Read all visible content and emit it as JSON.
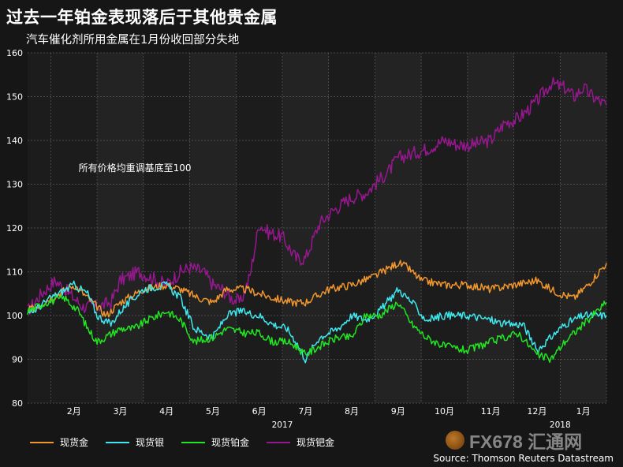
{
  "header": {
    "title": "过去一年铂金表现落后于其他贵金属",
    "subtitle": "汽车催化剂所用金属在1月份收回部分失地"
  },
  "source": "Source: Thomson Reuters Datastream",
  "watermark": "FX678 汇通网",
  "colors": {
    "background": "#161616",
    "plot_bg": "#1c1c1c",
    "shade_bg": "#232323",
    "grid": "#5a5a5a",
    "gold": "#f0962e",
    "silver": "#3ee8ee",
    "platinum": "#22e422",
    "palladium": "#96188f"
  },
  "chart_data": {
    "type": "line",
    "title": "过去一年铂金表现落后于其他贵金属",
    "subtitle": "汽车催化剂所用金属在1月份收回部分失地",
    "annotation": "所有价格均重调基底至100",
    "ylim": [
      80,
      160
    ],
    "yticks": [
      80,
      90,
      100,
      110,
      120,
      130,
      140,
      150,
      160
    ],
    "xlim": [
      0,
      12.5
    ],
    "x_month_labels": [
      "2月",
      "3月",
      "4月",
      "5月",
      "6月",
      "7月",
      "8月",
      "9月",
      "10月",
      "11月",
      "12月",
      "1月"
    ],
    "year_labels": [
      {
        "label": "2017",
        "x": 5.5
      },
      {
        "label": "2018",
        "x": 11.5
      }
    ],
    "grid": true,
    "legend_position": "bottom-left",
    "series": [
      {
        "name": "现货金",
        "color": "#f0962e",
        "x": [
          0,
          0.5,
          1,
          1.4,
          1.7,
          2,
          2.5,
          3,
          3.3,
          3.7,
          4,
          4.3,
          4.7,
          5,
          5.3,
          5.7,
          6,
          6.5,
          7,
          7.5,
          8,
          8.2,
          8.5,
          9,
          9.5,
          10,
          10.5,
          11,
          11.3,
          11.5,
          11.8,
          12.1,
          12.5
        ],
        "values": [
          101,
          104,
          107,
          103,
          100,
          103,
          106,
          107,
          106,
          104,
          103,
          106,
          106,
          105,
          104,
          103,
          103,
          106,
          107,
          109,
          112,
          111,
          108,
          107,
          107,
          106,
          107,
          108,
          106,
          105,
          104,
          107,
          112
        ]
      },
      {
        "name": "现货银",
        "color": "#3ee8ee",
        "x": [
          0,
          0.5,
          1,
          1.3,
          1.5,
          1.8,
          2,
          2.5,
          3,
          3.3,
          3.6,
          4,
          4.3,
          4.6,
          5,
          5.3,
          5.6,
          5.8,
          6,
          6.3,
          6.7,
          7,
          7.3,
          7.6,
          8,
          8.3,
          8.6,
          9,
          9.5,
          10,
          10.3,
          10.7,
          11,
          11.3,
          11.6,
          12,
          12.5
        ],
        "values": [
          100,
          104,
          107,
          105,
          100,
          98,
          101,
          106,
          107,
          104,
          97,
          95,
          100,
          101,
          100,
          98,
          97,
          94,
          90,
          95,
          97,
          100,
          99,
          101,
          106,
          103,
          99,
          100,
          100,
          99,
          98,
          98,
          92,
          95,
          98,
          100,
          100
        ]
      },
      {
        "name": "现货铂金",
        "color": "#22e422",
        "x": [
          0,
          0.4,
          0.8,
          1.1,
          1.3,
          1.5,
          2,
          2.3,
          2.6,
          3,
          3.3,
          3.6,
          4,
          4.3,
          4.7,
          5,
          5.3,
          5.6,
          5.8,
          6,
          6.3,
          6.7,
          7,
          7.3,
          7.6,
          8,
          8.3,
          8.6,
          9,
          9.5,
          10,
          10.3,
          10.6,
          11,
          11.3,
          11.6,
          12,
          12.3,
          12.5
        ],
        "values": [
          101,
          103,
          104,
          101,
          97,
          94,
          97,
          97,
          99,
          101,
          99,
          94,
          95,
          97,
          96,
          96,
          94,
          94,
          93,
          91,
          93,
          95,
          95,
          100,
          100,
          103,
          98,
          95,
          93,
          92,
          94,
          95,
          96,
          91,
          90,
          94,
          98,
          101,
          103
        ]
      },
      {
        "name": "现货钯金",
        "color": "#96188f",
        "x": [
          0,
          0.3,
          0.6,
          1,
          1.2,
          1.5,
          1.8,
          2,
          2.4,
          2.8,
          3,
          3.3,
          3.5,
          3.8,
          4,
          4.2,
          4.4,
          4.6,
          4.8,
          5,
          5.2,
          5.5,
          5.8,
          6,
          6.3,
          6.6,
          7,
          7.3,
          7.5,
          7.8,
          8,
          8.3,
          8.6,
          9,
          9.3,
          9.6,
          10,
          10.3,
          10.6,
          11,
          11.3,
          11.6,
          11.8,
          12,
          12.2,
          12.5
        ],
        "values": [
          101,
          105,
          108,
          104,
          102,
          102,
          103,
          108,
          110,
          108,
          107,
          110,
          111,
          110,
          107,
          106,
          104,
          103,
          109,
          121,
          119,
          118,
          113,
          113,
          121,
          124,
          127,
          128,
          130,
          133,
          136,
          137,
          138,
          140,
          139,
          139,
          140,
          144,
          145,
          149,
          153,
          152,
          150,
          152,
          150,
          148
        ]
      }
    ]
  }
}
